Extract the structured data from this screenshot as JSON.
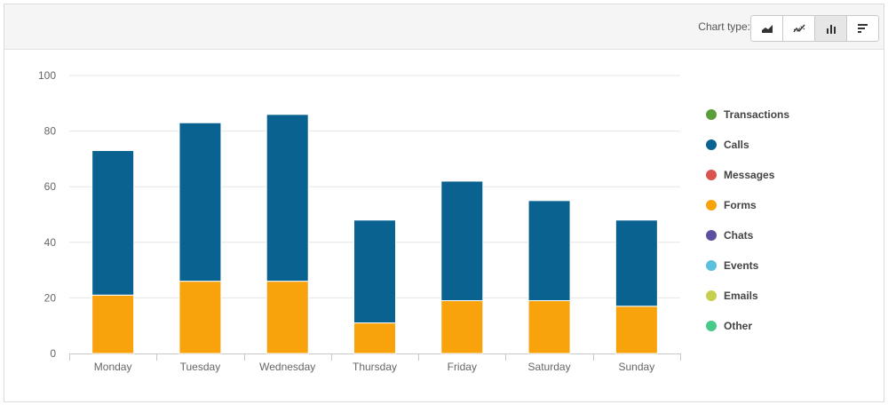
{
  "toolbar": {
    "chart_type_label": "Chart type:",
    "buttons": [
      {
        "name": "area-chart-button",
        "icon": "area-chart-icon",
        "active": false
      },
      {
        "name": "line-chart-button",
        "icon": "line-chart-icon",
        "active": false
      },
      {
        "name": "bar-chart-button",
        "icon": "bar-chart-icon",
        "active": true
      },
      {
        "name": "horizontal-bar-chart-button",
        "icon": "horizontal-bar-chart-icon",
        "active": false
      }
    ]
  },
  "legend": [
    {
      "label": "Transactions",
      "color": "#5a9e3a"
    },
    {
      "label": "Calls",
      "color": "#0a6290"
    },
    {
      "label": "Messages",
      "color": "#d9534f"
    },
    {
      "label": "Forms",
      "color": "#f8a20c"
    },
    {
      "label": "Chats",
      "color": "#5c4f9f"
    },
    {
      "label": "Events",
      "color": "#5bc0de"
    },
    {
      "label": "Emails",
      "color": "#c6cf4e"
    },
    {
      "label": "Other",
      "color": "#47c98a"
    }
  ],
  "chart_data": {
    "type": "bar",
    "stacked": true,
    "categories": [
      "Monday",
      "Tuesday",
      "Wednesday",
      "Thursday",
      "Friday",
      "Saturday",
      "Sunday"
    ],
    "series": [
      {
        "name": "Forms",
        "color": "#f8a20c",
        "values": [
          21,
          26,
          26,
          11,
          19,
          19,
          17
        ]
      },
      {
        "name": "Calls",
        "color": "#0a6290",
        "values": [
          52,
          57,
          60,
          37,
          43,
          36,
          31
        ]
      }
    ],
    "ylim": [
      0,
      100
    ],
    "yticks": [
      0,
      20,
      40,
      60,
      80,
      100
    ],
    "grid": true,
    "legend_position": "right"
  }
}
